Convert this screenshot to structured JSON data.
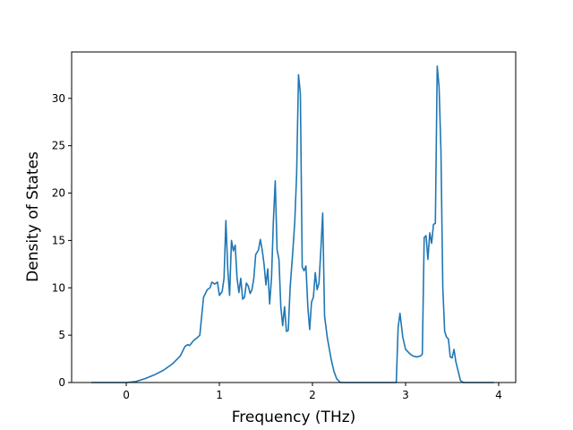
{
  "chart_data": {
    "type": "line",
    "x_label": "Frequency (THz)",
    "y_label": "Density of States",
    "x": [
      -0.375,
      0,
      0.1,
      0.2,
      0.3,
      0.4,
      0.5,
      0.58,
      0.63,
      0.66,
      0.68,
      0.72,
      0.77,
      0.79,
      0.8,
      0.83,
      0.87,
      0.9,
      0.92,
      0.95,
      0.98,
      1.0,
      1.03,
      1.05,
      1.07,
      1.09,
      1.11,
      1.13,
      1.15,
      1.17,
      1.19,
      1.21,
      1.23,
      1.25,
      1.27,
      1.29,
      1.31,
      1.33,
      1.35,
      1.37,
      1.39,
      1.42,
      1.44,
      1.46,
      1.48,
      1.5,
      1.52,
      1.54,
      1.56,
      1.58,
      1.6,
      1.62,
      1.64,
      1.66,
      1.68,
      1.7,
      1.72,
      1.74,
      1.76,
      1.79,
      1.81,
      1.83,
      1.85,
      1.87,
      1.89,
      1.91,
      1.93,
      1.95,
      1.97,
      1.99,
      2.01,
      2.03,
      2.05,
      2.07,
      2.09,
      2.11,
      2.13,
      2.16,
      2.2,
      2.23,
      2.26,
      2.3,
      2.9,
      2.92,
      2.94,
      2.97,
      3.0,
      3.05,
      3.08,
      3.12,
      3.16,
      3.18,
      3.2,
      3.22,
      3.24,
      3.26,
      3.28,
      3.3,
      3.32,
      3.34,
      3.36,
      3.38,
      3.4,
      3.42,
      3.44,
      3.46,
      3.48,
      3.5,
      3.52,
      3.54,
      3.57,
      3.59,
      3.62,
      3.95
    ],
    "series": [
      {
        "name": "DOS",
        "color": "#1f77b4",
        "values": [
          0,
          0,
          0.1,
          0.4,
          0.8,
          1.3,
          2.0,
          2.8,
          3.8,
          4.0,
          3.9,
          4.4,
          4.8,
          5.0,
          6,
          9.0,
          9.8,
          10.0,
          10.6,
          10.4,
          10.6,
          9.2,
          9.6,
          11,
          17.1,
          12,
          9.2,
          15.0,
          13.9,
          14.5,
          11,
          9.5,
          11,
          8.8,
          9,
          10.5,
          10.2,
          9.4,
          9.8,
          11,
          13.5,
          14,
          15.1,
          14,
          12.5,
          10.3,
          12,
          8.3,
          11,
          17,
          21.3,
          14,
          13,
          8,
          6,
          8,
          5.4,
          5.5,
          10,
          14,
          17,
          22,
          32.5,
          30.5,
          12.2,
          11.8,
          12.3,
          8,
          5.6,
          8.5,
          9,
          11.6,
          9.8,
          10.5,
          14,
          17.9,
          7,
          4.7,
          2.5,
          1.2,
          0.4,
          0,
          0,
          5.8,
          7.3,
          4.8,
          3.5,
          3.0,
          2.8,
          2.7,
          2.8,
          3.0,
          15.3,
          15.5,
          13.0,
          15.8,
          14.7,
          16.7,
          16.8,
          33.4,
          31.2,
          24.5,
          10,
          5.4,
          4.8,
          4.6,
          2.7,
          2.6,
          3.5,
          2.2,
          1.0,
          0.2,
          0,
          0
        ]
      }
    ],
    "xlim": [
      -0.587,
      4.183
    ],
    "ylim": [
      0,
      34.9
    ],
    "xticks": [
      0,
      1,
      2,
      3,
      4
    ],
    "yticks": [
      0,
      5,
      10,
      15,
      20,
      25,
      30
    ],
    "grid": false
  }
}
